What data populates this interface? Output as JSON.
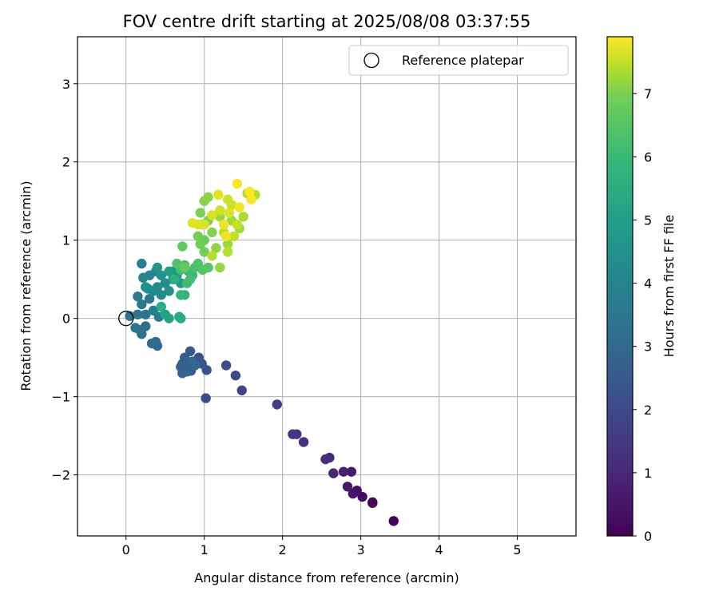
{
  "chart_data": {
    "type": "scatter",
    "title": "FOV centre drift starting at 2025/08/08 03:37:55",
    "xlabel": "Angular distance from reference (arcmin)",
    "ylabel": "Rotation from reference (arcmin)",
    "xlim": [
      -0.62,
      5.75
    ],
    "ylim": [
      -2.78,
      3.6
    ],
    "x_ticks": [
      0,
      1,
      2,
      3,
      4,
      5
    ],
    "y_ticks": [
      -2,
      -1,
      0,
      1,
      2,
      3
    ],
    "grid": true,
    "legend": {
      "position": "top-right",
      "entries": [
        "Reference platepar"
      ]
    },
    "reference_point": {
      "x": 0,
      "y": 0
    },
    "colorbar": {
      "label": "Hours from first FF file",
      "colormap": "viridis",
      "range": [
        0,
        7.9
      ],
      "ticks": [
        0,
        1,
        2,
        3,
        4,
        5,
        6,
        7
      ]
    },
    "series": [
      {
        "color_by": "hours",
        "points": [
          [
            3.42,
            -2.59,
            0.05
          ],
          [
            3.15,
            -2.35,
            0.15
          ],
          [
            3.15,
            -2.36,
            0.2
          ],
          [
            3.02,
            -2.28,
            0.3
          ],
          [
            2.95,
            -2.2,
            0.4
          ],
          [
            2.9,
            -2.24,
            0.45
          ],
          [
            2.83,
            -2.15,
            0.55
          ],
          [
            2.88,
            -1.96,
            0.6
          ],
          [
            2.78,
            -1.96,
            0.7
          ],
          [
            2.65,
            -1.98,
            0.8
          ],
          [
            2.6,
            -1.78,
            0.9
          ],
          [
            2.55,
            -1.8,
            1.0
          ],
          [
            2.27,
            -1.58,
            1.1
          ],
          [
            2.18,
            -1.48,
            1.2
          ],
          [
            2.13,
            -1.48,
            1.3
          ],
          [
            1.93,
            -1.1,
            1.4
          ],
          [
            1.48,
            -0.92,
            1.6
          ],
          [
            1.4,
            -0.73,
            1.7
          ],
          [
            1.28,
            -0.6,
            1.8
          ],
          [
            1.02,
            -1.02,
            1.9
          ],
          [
            1.03,
            -0.66,
            2.0
          ],
          [
            0.97,
            -0.58,
            2.05
          ],
          [
            0.93,
            -0.5,
            2.1
          ],
          [
            0.83,
            -0.67,
            2.15
          ],
          [
            0.82,
            -0.42,
            2.2
          ],
          [
            0.8,
            -0.6,
            2.25
          ],
          [
            0.78,
            -0.55,
            2.3
          ],
          [
            0.75,
            -0.5,
            2.35
          ],
          [
            0.72,
            -0.58,
            2.4
          ],
          [
            0.72,
            -0.7,
            2.45
          ],
          [
            0.7,
            -0.62,
            2.5
          ],
          [
            0.78,
            -0.68,
            2.55
          ],
          [
            0.85,
            -0.55,
            2.6
          ],
          [
            0.88,
            -0.6,
            2.65
          ],
          [
            0.4,
            -0.35,
            2.7
          ],
          [
            0.38,
            -0.3,
            2.75
          ],
          [
            0.33,
            -0.32,
            2.8
          ],
          [
            0.25,
            -0.1,
            2.85
          ],
          [
            0.2,
            -0.2,
            2.9
          ],
          [
            0.18,
            -0.15,
            2.95
          ],
          [
            0.12,
            -0.12,
            3.0
          ],
          [
            0.05,
            0.03,
            3.05
          ],
          [
            0.15,
            0.05,
            3.1
          ],
          [
            0.25,
            0.05,
            3.15
          ],
          [
            0.2,
            0.18,
            3.2
          ],
          [
            0.15,
            0.28,
            3.25
          ],
          [
            0.3,
            0.25,
            3.3
          ],
          [
            0.35,
            0.1,
            3.35
          ],
          [
            0.42,
            0.02,
            3.4
          ],
          [
            0.2,
            0.7,
            3.45
          ],
          [
            0.3,
            0.55,
            3.5
          ],
          [
            0.38,
            0.6,
            3.55
          ],
          [
            0.22,
            0.52,
            3.6
          ],
          [
            0.28,
            0.38,
            3.65
          ],
          [
            0.4,
            0.4,
            3.7
          ],
          [
            0.45,
            0.3,
            3.75
          ],
          [
            0.35,
            0.35,
            3.8
          ],
          [
            0.5,
            0.45,
            3.85
          ],
          [
            0.55,
            0.35,
            3.9
          ],
          [
            0.6,
            0.5,
            3.95
          ],
          [
            0.25,
            0.4,
            4.0
          ],
          [
            0.45,
            0.55,
            4.05
          ],
          [
            0.6,
            0.6,
            4.1
          ],
          [
            0.4,
            0.65,
            4.15
          ],
          [
            0.65,
            0.55,
            4.2
          ],
          [
            0.7,
            0.45,
            4.3
          ],
          [
            0.55,
            0.6,
            4.4
          ],
          [
            0.5,
            0.05,
            4.5
          ],
          [
            0.55,
            0.0,
            4.6
          ],
          [
            0.68,
            0.02,
            4.7
          ],
          [
            0.7,
            0.0,
            4.8
          ],
          [
            0.45,
            0.15,
            4.9
          ],
          [
            0.62,
            0.5,
            5.0
          ],
          [
            0.75,
            0.3,
            5.1
          ],
          [
            0.7,
            0.3,
            5.2
          ],
          [
            0.8,
            0.6,
            5.3
          ],
          [
            0.85,
            0.55,
            5.35
          ],
          [
            0.78,
            0.45,
            5.4
          ],
          [
            0.82,
            0.5,
            5.45
          ],
          [
            0.75,
            0.68,
            5.5
          ],
          [
            0.7,
            0.62,
            5.55
          ],
          [
            0.88,
            0.65,
            5.6
          ],
          [
            0.92,
            0.7,
            5.65
          ],
          [
            0.65,
            0.7,
            5.7
          ],
          [
            0.98,
            0.62,
            5.75
          ],
          [
            1.05,
            0.65,
            5.8
          ],
          [
            0.72,
            0.92,
            5.9
          ],
          [
            0.75,
            0.65,
            6.0
          ],
          [
            1.0,
            1.0,
            6.05
          ],
          [
            0.95,
            0.95,
            6.1
          ],
          [
            1.0,
            0.85,
            6.15
          ],
          [
            0.92,
            1.05,
            6.2
          ],
          [
            0.98,
            1.2,
            6.25
          ],
          [
            0.95,
            1.35,
            6.3
          ],
          [
            1.05,
            1.25,
            6.35
          ],
          [
            1.1,
            1.1,
            6.4
          ],
          [
            1.0,
            1.5,
            6.45
          ],
          [
            1.05,
            1.55,
            6.5
          ],
          [
            1.15,
            0.9,
            6.55
          ],
          [
            1.2,
            0.65,
            6.6
          ],
          [
            1.2,
            1.3,
            6.65
          ],
          [
            1.3,
            0.95,
            6.7
          ],
          [
            1.35,
            1.25,
            6.75
          ],
          [
            1.45,
            1.15,
            6.8
          ],
          [
            1.5,
            1.3,
            6.85
          ],
          [
            1.55,
            1.6,
            6.9
          ],
          [
            1.65,
            1.58,
            6.95
          ],
          [
            1.3,
            0.85,
            7.0
          ],
          [
            1.1,
            0.8,
            7.05
          ],
          [
            1.25,
            1.1,
            7.1
          ],
          [
            1.38,
            1.05,
            7.15
          ],
          [
            1.42,
            1.2,
            7.2
          ],
          [
            1.35,
            1.45,
            7.25
          ],
          [
            1.3,
            1.52,
            7.3
          ],
          [
            1.2,
            1.38,
            7.35
          ],
          [
            1.1,
            1.32,
            7.4
          ],
          [
            1.0,
            1.2,
            7.45
          ],
          [
            0.92,
            1.2,
            7.5
          ],
          [
            0.85,
            1.22,
            7.55
          ],
          [
            1.18,
            1.58,
            7.6
          ],
          [
            1.25,
            1.2,
            7.65
          ],
          [
            1.28,
            1.05,
            7.7
          ],
          [
            1.45,
            1.42,
            7.75
          ],
          [
            1.42,
            1.72,
            7.8
          ],
          [
            1.6,
            1.52,
            7.85
          ],
          [
            1.58,
            1.62,
            7.9
          ],
          [
            1.32,
            1.35,
            7.5
          ]
        ]
      }
    ]
  }
}
